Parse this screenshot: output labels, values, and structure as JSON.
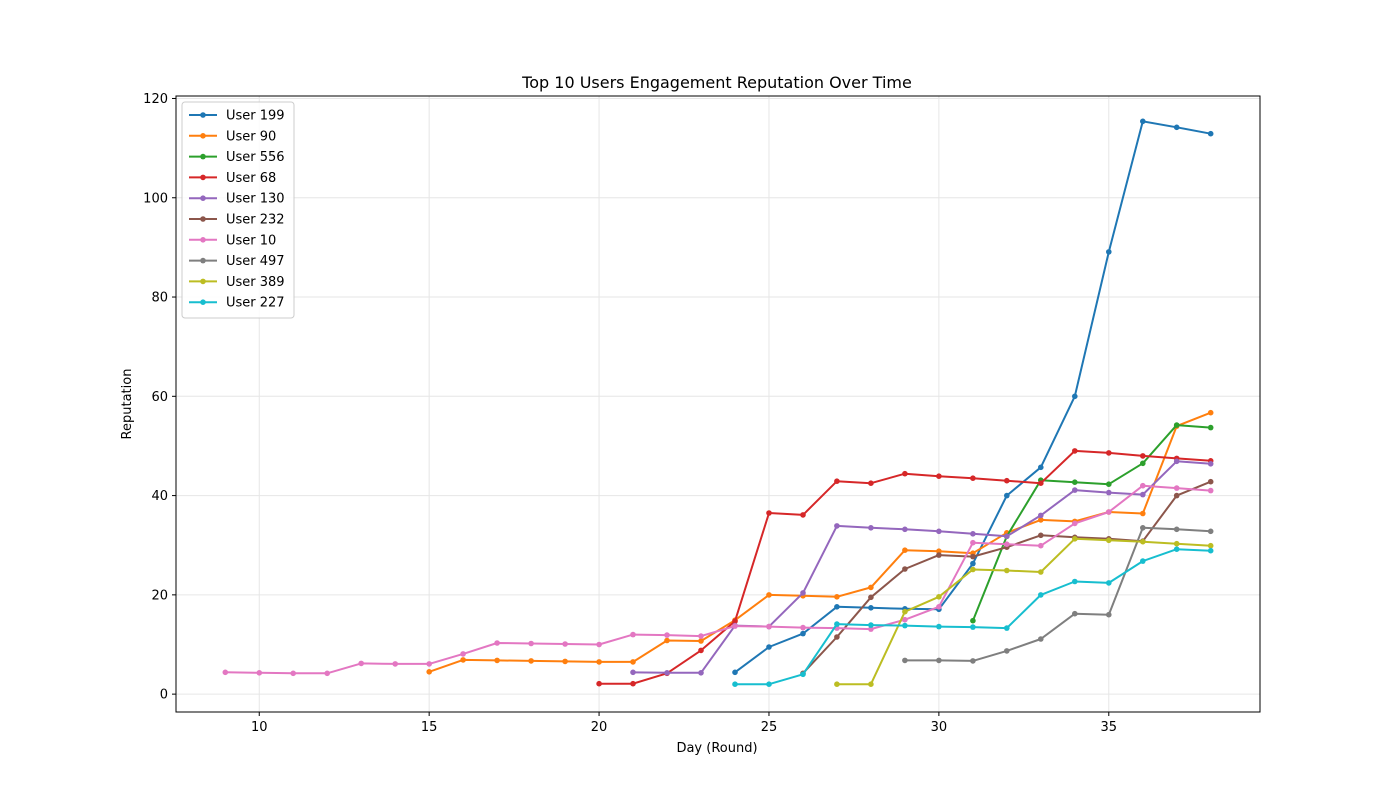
{
  "chart_data": {
    "type": "line",
    "title": "Top 10 Users Engagement Reputation Over Time",
    "xlabel": "Day (Round)",
    "ylabel": "Reputation",
    "xlim": [
      7.55,
      39.45
    ],
    "ylim": [
      -3.6,
      120.5
    ],
    "xticks": [
      10,
      15,
      20,
      25,
      30,
      35
    ],
    "yticks": [
      0,
      20,
      40,
      60,
      80,
      100,
      120
    ],
    "grid": true,
    "legend_position": "top-left",
    "series": [
      {
        "name": "User 199",
        "color": "#1f77b4",
        "x": [
          24,
          25,
          26,
          27,
          28,
          29,
          30,
          31,
          32,
          33,
          34,
          35,
          36,
          37,
          38
        ],
        "y": [
          4.4,
          9.5,
          12.2,
          17.6,
          17.4,
          17.2,
          17.1,
          26.3,
          40.0,
          45.7,
          60.0,
          89.1,
          115.4,
          114.2,
          112.9
        ]
      },
      {
        "name": "User 90",
        "color": "#ff7f0e",
        "x": [
          15,
          16,
          17,
          18,
          19,
          20,
          21,
          22,
          23,
          24,
          25,
          26,
          27,
          28,
          29,
          30,
          31,
          32,
          33,
          34,
          35,
          36,
          37,
          38
        ],
        "y": [
          4.5,
          6.9,
          6.8,
          6.7,
          6.6,
          6.5,
          6.5,
          10.8,
          10.7,
          14.9,
          20.0,
          19.8,
          19.6,
          21.5,
          29.0,
          28.8,
          28.4,
          32.5,
          35.1,
          34.8,
          36.7,
          36.4,
          54.0,
          56.7
        ]
      },
      {
        "name": "User 556",
        "color": "#2ca02c",
        "x": [
          31,
          32,
          33,
          34,
          35,
          36,
          37,
          38
        ],
        "y": [
          14.8,
          31.8,
          43.1,
          42.7,
          42.3,
          46.5,
          54.2,
          53.7
        ]
      },
      {
        "name": "User 68",
        "color": "#d62728",
        "x": [
          20,
          21,
          22,
          23,
          24,
          25,
          26,
          27,
          28,
          29,
          30,
          31,
          32,
          33,
          34,
          35,
          36,
          37,
          38
        ],
        "y": [
          2.1,
          2.1,
          4.2,
          8.8,
          14.7,
          36.5,
          36.1,
          42.9,
          42.5,
          44.4,
          43.9,
          43.5,
          43.0,
          42.5,
          49.0,
          48.6,
          48.0,
          47.5,
          47.0
        ]
      },
      {
        "name": "User 130",
        "color": "#9467bd",
        "x": [
          21,
          22,
          23,
          24,
          25,
          26,
          27,
          28,
          29,
          30,
          31,
          32,
          33,
          34,
          35,
          36,
          37,
          38
        ],
        "y": [
          4.4,
          4.3,
          4.3,
          13.8,
          13.6,
          20.4,
          33.9,
          33.5,
          33.2,
          32.8,
          32.3,
          31.8,
          36.0,
          41.1,
          40.6,
          40.2,
          46.9,
          46.4
        ]
      },
      {
        "name": "User 232",
        "color": "#8c564b",
        "x": [
          26,
          27,
          28,
          29,
          30,
          31,
          32,
          33,
          34,
          35,
          36,
          37,
          38
        ],
        "y": [
          4.2,
          11.5,
          19.5,
          25.2,
          28.0,
          27.7,
          29.6,
          32.0,
          31.6,
          31.3,
          30.8,
          40.0,
          42.8
        ]
      },
      {
        "name": "User 10",
        "color": "#e377c2",
        "x": [
          9,
          10,
          11,
          12,
          13,
          14,
          15,
          16,
          17,
          18,
          19,
          20,
          21,
          22,
          23,
          24,
          25,
          26,
          27,
          28,
          29,
          30,
          31,
          32,
          33,
          34,
          35,
          36,
          37,
          38
        ],
        "y": [
          4.4,
          4.3,
          4.2,
          4.2,
          6.2,
          6.1,
          6.1,
          8.1,
          10.3,
          10.2,
          10.1,
          10.0,
          12.0,
          11.9,
          11.7,
          13.7,
          13.6,
          13.4,
          13.3,
          13.1,
          15.0,
          17.6,
          30.5,
          30.2,
          29.9,
          34.4,
          36.7,
          42.0,
          41.5,
          41.0
        ]
      },
      {
        "name": "User 497",
        "color": "#7f7f7f",
        "x": [
          29,
          30,
          31,
          32,
          33,
          34,
          35,
          36,
          37,
          38
        ],
        "y": [
          6.8,
          6.8,
          6.7,
          8.7,
          11.1,
          16.2,
          16.0,
          33.5,
          33.2,
          32.8
        ]
      },
      {
        "name": "User 389",
        "color": "#bcbd22",
        "x": [
          27,
          28,
          29,
          30,
          31,
          32,
          33,
          34,
          35,
          36,
          37,
          38
        ],
        "y": [
          2.0,
          2.0,
          16.6,
          19.6,
          25.1,
          24.9,
          24.6,
          31.3,
          31.0,
          30.7,
          30.3,
          29.9
        ]
      },
      {
        "name": "User 227",
        "color": "#17becf",
        "x": [
          24,
          25,
          26,
          27,
          28,
          29,
          30,
          31,
          32,
          33,
          34,
          35,
          36,
          37,
          38
        ],
        "y": [
          2.0,
          2.0,
          4.0,
          14.1,
          13.9,
          13.8,
          13.6,
          13.5,
          13.3,
          20.0,
          22.7,
          22.4,
          26.8,
          29.2,
          28.9
        ]
      }
    ]
  }
}
